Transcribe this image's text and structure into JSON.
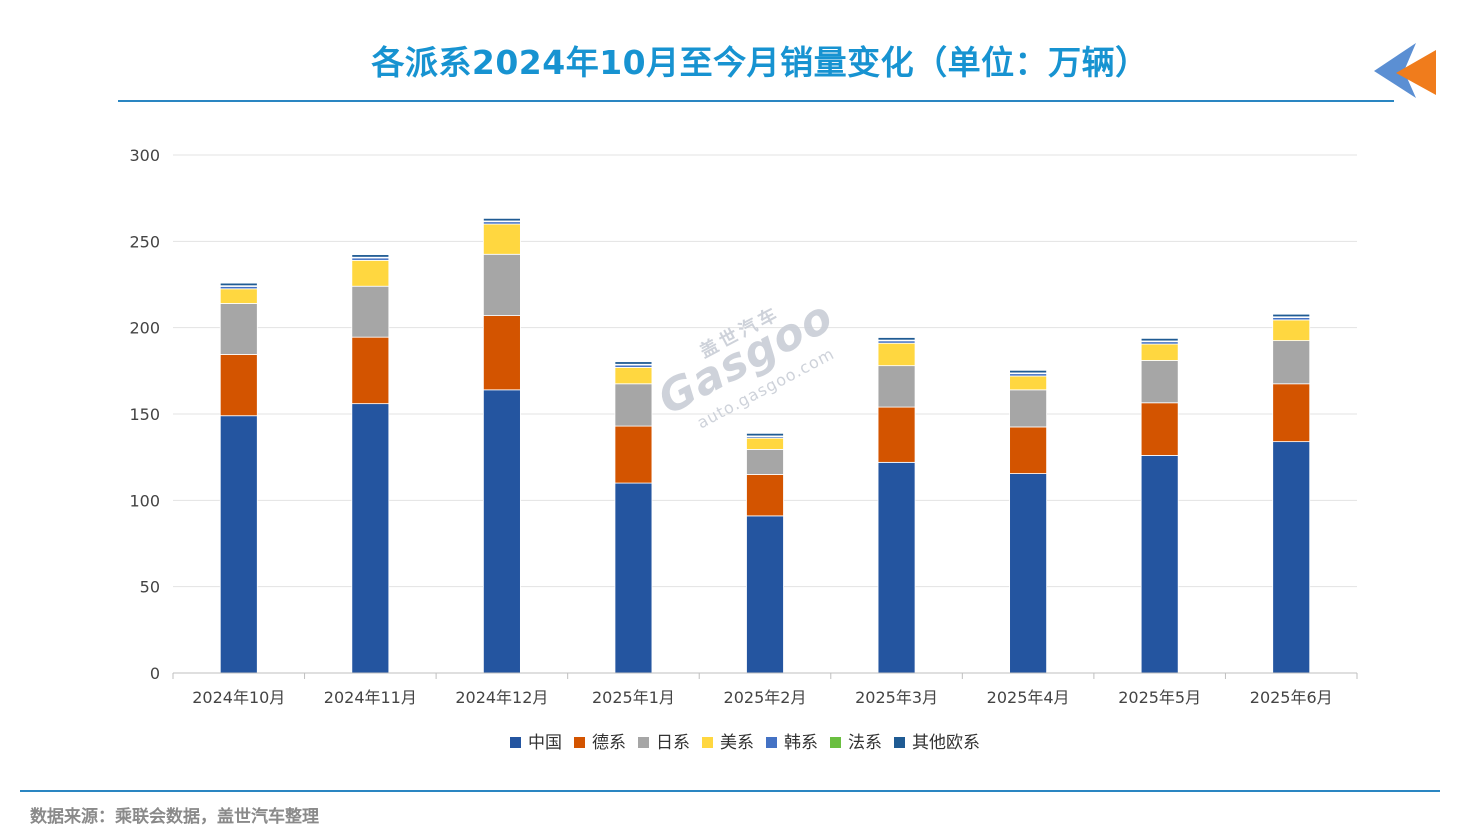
{
  "header": {
    "title": "各派系2024年10月至今月销量变化（单位：万辆）"
  },
  "footer": {
    "source": "数据来源：乘联会数据，盖世汽车整理"
  },
  "watermark": {
    "cn": "盖世汽车",
    "brand": "Gasgoo",
    "url": "auto.gasgoo.com"
  },
  "colors": {
    "title": "#1793d1",
    "rule": "#2a86c2",
    "logo_blue": "#5b8fd3",
    "logo_orange": "#f07c1c"
  },
  "chart_data": {
    "type": "bar",
    "stacked": true,
    "title": "各派系2024年10月至今月销量变化（单位：万辆）",
    "xlabel": "",
    "ylabel": "",
    "ylim": [
      0,
      300
    ],
    "yticks": [
      0,
      50,
      100,
      150,
      200,
      250,
      300
    ],
    "grid": true,
    "legend_position": "bottom",
    "categories": [
      "2024年10月",
      "2024年11月",
      "2024年12月",
      "2025年1月",
      "2025年2月",
      "2025年3月",
      "2025年4月",
      "2025年5月",
      "2025年6月"
    ],
    "series": [
      {
        "name": "中国",
        "color": "#2455a0",
        "values": [
          149,
          156,
          164,
          110,
          91,
          122,
          115.5,
          126,
          134
        ]
      },
      {
        "name": "德系",
        "color": "#d35400",
        "values": [
          35.5,
          38.5,
          43,
          33,
          24,
          32,
          27,
          30.5,
          33.5
        ]
      },
      {
        "name": "日系",
        "color": "#a6a6a6",
        "values": [
          29.5,
          29.5,
          35.5,
          24.5,
          14.5,
          24,
          21.5,
          24.5,
          25
        ]
      },
      {
        "name": "美系",
        "color": "#ffd740",
        "values": [
          8.5,
          15,
          17.5,
          9.5,
          6.5,
          13,
          8,
          9.5,
          12
        ]
      },
      {
        "name": "韩系",
        "color": "#4472c4",
        "values": [
          1.5,
          1.5,
          1.5,
          1.5,
          1,
          1.5,
          1.5,
          1.5,
          1.5
        ]
      },
      {
        "name": "法系",
        "color": "#6abf40",
        "values": [
          0.3,
          0.3,
          0.3,
          0.3,
          0.3,
          0.3,
          0.3,
          0.3,
          0.3
        ]
      },
      {
        "name": "其他欧系",
        "color": "#1f5b93",
        "values": [
          1.5,
          1.5,
          1.5,
          1.5,
          1.5,
          1.5,
          1.5,
          1.5,
          1.5
        ]
      }
    ]
  }
}
